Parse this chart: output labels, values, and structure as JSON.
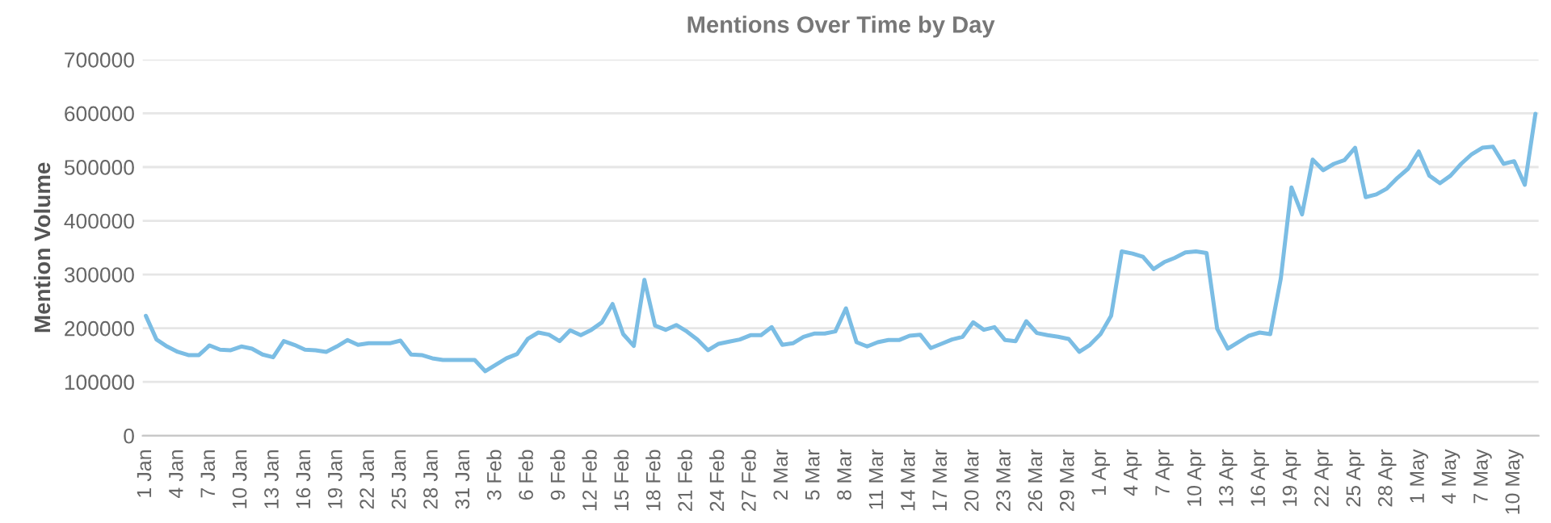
{
  "chart_data": {
    "type": "line",
    "title": "Mentions Over Time by Day",
    "ylabel": "Mention Volume",
    "categories": [
      "1 Jan",
      null,
      null,
      "4 Jan",
      null,
      null,
      "7 Jan",
      null,
      null,
      "10 Jan",
      null,
      null,
      "13 Jan",
      null,
      null,
      "16 Jan",
      null,
      null,
      "19 Jan",
      null,
      null,
      "22 Jan",
      null,
      null,
      "25 Jan",
      null,
      null,
      "28 Jan",
      null,
      null,
      "31 Jan",
      null,
      null,
      "3 Feb",
      null,
      null,
      "6 Feb",
      null,
      null,
      "9 Feb",
      null,
      null,
      "12 Feb",
      null,
      null,
      "15 Feb",
      null,
      null,
      "18 Feb",
      null,
      null,
      "21 Feb",
      null,
      null,
      "24 Feb",
      null,
      null,
      "27 Feb",
      null,
      null,
      "2 Mar",
      null,
      null,
      "5 Mar",
      null,
      null,
      "8 Mar",
      null,
      null,
      "11 Mar",
      null,
      null,
      "14 Mar",
      null,
      null,
      "17 Mar",
      null,
      null,
      "20 Mar",
      null,
      null,
      "23 Mar",
      null,
      null,
      "26 Mar",
      null,
      null,
      "29 Mar",
      null,
      null,
      "1 Apr",
      null,
      null,
      "4 Apr",
      null,
      null,
      "7 Apr",
      null,
      null,
      "10 Apr",
      null,
      null,
      "13 Apr",
      null,
      null,
      "16 Apr",
      null,
      null,
      "19 Apr",
      null,
      null,
      "22 Apr",
      null,
      null,
      "25 Apr",
      null,
      null,
      "28 Apr",
      null,
      null,
      "1 May",
      null,
      null,
      "4 May",
      null,
      null,
      "7 May",
      null,
      null,
      "10 May",
      null,
      null
    ],
    "series": [
      {
        "color": "#7bbde4",
        "values": [
          223000,
          179000,
          166000,
          156000,
          150000,
          150000,
          168000,
          160000,
          159000,
          166000,
          162000,
          151000,
          146000,
          176000,
          169000,
          160000,
          159000,
          156000,
          166000,
          178000,
          169000,
          172000,
          172000,
          172000,
          177000,
          151000,
          150000,
          144000,
          141000,
          141000,
          141000,
          141000,
          120000,
          132000,
          144000,
          152000,
          180000,
          192000,
          188000,
          176000,
          196000,
          187000,
          197000,
          211000,
          245000,
          189000,
          167000,
          290000,
          205000,
          197000,
          206000,
          194000,
          179000,
          159000,
          171000,
          175000,
          179000,
          187000,
          187000,
          202000,
          169000,
          172000,
          184000,
          190000,
          190000,
          194000,
          237000,
          174000,
          166000,
          174000,
          178000,
          178000,
          186000,
          188000,
          163000,
          171000,
          179000,
          184000,
          211000,
          197000,
          202000,
          178000,
          176000,
          213000,
          191000,
          187000,
          184000,
          180000,
          156000,
          169000,
          189000,
          223000,
          343000,
          339000,
          333000,
          310000,
          323000,
          331000,
          341000,
          343000,
          340000,
          199000,
          162000,
          174000,
          186000,
          192000,
          189000,
          293000,
          462000,
          412000,
          514000,
          494000,
          506000,
          513000,
          536000,
          444000,
          449000,
          460000,
          480000,
          497000,
          529000,
          484000,
          470000,
          484000,
          506000,
          524000,
          536000,
          538000,
          506000,
          511000,
          467000,
          599000
        ]
      }
    ],
    "ylim": [
      0,
      700000
    ],
    "yticks": [
      0,
      100000,
      200000,
      300000,
      400000,
      500000,
      600000,
      700000
    ],
    "grid": "y",
    "legend": false,
    "marker": "none",
    "line_style": "solid"
  }
}
